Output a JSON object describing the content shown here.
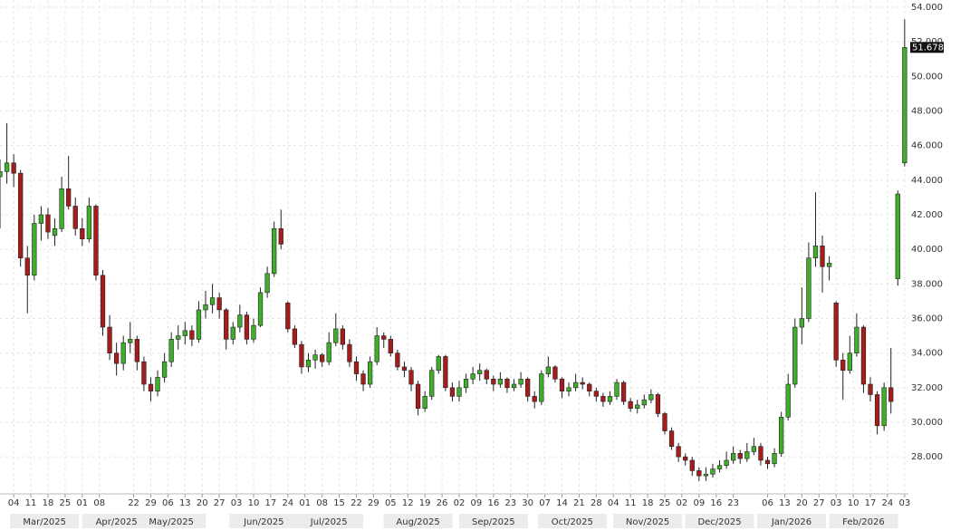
{
  "chart_data": {
    "type": "candlestick",
    "up_color": "#3fae2a",
    "down_color": "#a51c1c",
    "grid": true,
    "xlim": [
      -4,
      261.1
    ],
    "ylim": [
      25.86,
      54.42
    ],
    "yticks": [
      {
        "value": 28,
        "label": "28.000"
      },
      {
        "value": 30,
        "label": "30.000"
      },
      {
        "value": 32,
        "label": "32.000"
      },
      {
        "value": 34,
        "label": "34.000"
      },
      {
        "value": 36,
        "label": "36.000"
      },
      {
        "value": 38,
        "label": "38.000"
      },
      {
        "value": 40,
        "label": "40.000"
      },
      {
        "value": 42,
        "label": "42.000"
      },
      {
        "value": 44,
        "label": "44.000"
      },
      {
        "value": 46,
        "label": "46.000"
      },
      {
        "value": 48,
        "label": "48.000"
      },
      {
        "value": 50,
        "label": "50.000"
      },
      {
        "value": 52,
        "label": "52.000"
      },
      {
        "value": 54,
        "label": "54.000"
      }
    ],
    "xticks": [
      {
        "value": 0,
        "label": "04"
      },
      {
        "value": 5,
        "label": "11"
      },
      {
        "value": 10,
        "label": "18"
      },
      {
        "value": 15,
        "label": "25"
      },
      {
        "value": 20,
        "label": "01"
      },
      {
        "value": 25,
        "label": "08"
      },
      {
        "value": 35,
        "label": "22"
      },
      {
        "value": 40,
        "label": "29"
      },
      {
        "value": 45,
        "label": "06"
      },
      {
        "value": 50,
        "label": "13"
      },
      {
        "value": 55,
        "label": "20"
      },
      {
        "value": 60,
        "label": "27"
      },
      {
        "value": 65,
        "label": "03"
      },
      {
        "value": 70,
        "label": "10"
      },
      {
        "value": 75,
        "label": "17"
      },
      {
        "value": 80,
        "label": "24"
      },
      {
        "value": 85,
        "label": "01"
      },
      {
        "value": 90,
        "label": "08"
      },
      {
        "value": 95,
        "label": "15"
      },
      {
        "value": 100,
        "label": "22"
      },
      {
        "value": 105,
        "label": "29"
      },
      {
        "value": 110,
        "label": "05"
      },
      {
        "value": 115,
        "label": "12"
      },
      {
        "value": 120,
        "label": "19"
      },
      {
        "value": 125,
        "label": "26"
      },
      {
        "value": 130,
        "label": "02"
      },
      {
        "value": 135,
        "label": "09"
      },
      {
        "value": 140,
        "label": "16"
      },
      {
        "value": 145,
        "label": "23"
      },
      {
        "value": 150,
        "label": "30"
      },
      {
        "value": 155,
        "label": "07"
      },
      {
        "value": 160,
        "label": "14"
      },
      {
        "value": 165,
        "label": "21"
      },
      {
        "value": 170,
        "label": "28"
      },
      {
        "value": 175,
        "label": "04"
      },
      {
        "value": 180,
        "label": "11"
      },
      {
        "value": 185,
        "label": "18"
      },
      {
        "value": 190,
        "label": "25"
      },
      {
        "value": 195,
        "label": "02"
      },
      {
        "value": 200,
        "label": "09"
      },
      {
        "value": 205,
        "label": "16"
      },
      {
        "value": 210,
        "label": "23"
      },
      {
        "value": 220,
        "label": "06"
      },
      {
        "value": 225,
        "label": "13"
      },
      {
        "value": 230,
        "label": "20"
      },
      {
        "value": 235,
        "label": "27"
      },
      {
        "value": 240,
        "label": "03"
      },
      {
        "value": 245,
        "label": "10"
      },
      {
        "value": 250,
        "label": "17"
      },
      {
        "value": 255,
        "label": "24"
      },
      {
        "value": 260,
        "label": "03"
      }
    ],
    "month_ticks": [
      {
        "value": 9,
        "label": "Mar/2025"
      },
      {
        "value": 30,
        "label": "Apr/2025"
      },
      {
        "value": 46,
        "label": "May/2025"
      },
      {
        "value": 73,
        "label": "Jun/2025"
      },
      {
        "value": 92,
        "label": "Jul/2025"
      },
      {
        "value": 118,
        "label": "Aug/2025"
      },
      {
        "value": 140,
        "label": "Sep/2025"
      },
      {
        "value": 163,
        "label": "Oct/2025"
      },
      {
        "value": 185,
        "label": "Nov/2025"
      },
      {
        "value": 206,
        "label": "Dec/2025"
      },
      {
        "value": 227,
        "label": "Jan/2026"
      },
      {
        "value": 248,
        "label": "Feb/2026"
      }
    ],
    "x": [
      -4,
      -2,
      0,
      2,
      4,
      6,
      8,
      10,
      12,
      14,
      16,
      18,
      20,
      22,
      24,
      26,
      28,
      30,
      32,
      34,
      36,
      38,
      40,
      42,
      44,
      46,
      48,
      50,
      52,
      54,
      56,
      58,
      60,
      62,
      64,
      66,
      68,
      70,
      72,
      74,
      76,
      78,
      80,
      82,
      84,
      86,
      88,
      90,
      92,
      94,
      96,
      98,
      100,
      102,
      104,
      106,
      108,
      110,
      112,
      114,
      116,
      118,
      120,
      122,
      124,
      126,
      128,
      130,
      132,
      134,
      136,
      138,
      140,
      142,
      144,
      146,
      148,
      150,
      152,
      154,
      156,
      158,
      160,
      162,
      164,
      166,
      168,
      170,
      172,
      174,
      176,
      178,
      180,
      182,
      184,
      186,
      188,
      190,
      192,
      194,
      196,
      198,
      200,
      202,
      204,
      206,
      208,
      210,
      212,
      214,
      216,
      218,
      220,
      222,
      224,
      226,
      228,
      230,
      232,
      234,
      236,
      238,
      240,
      242,
      244,
      246,
      248,
      250,
      252,
      254,
      256,
      258,
      260
    ],
    "ohlc": [
      [
        44.2,
        45.2,
        41.2,
        44.5
      ],
      [
        44.5,
        47.3,
        43.8,
        45.0
      ],
      [
        45.0,
        45.5,
        43.6,
        44.4
      ],
      [
        44.4,
        44.6,
        39.0,
        39.5
      ],
      [
        39.5,
        40.2,
        36.3,
        38.5
      ],
      [
        38.5,
        42.0,
        38.2,
        41.5
      ],
      [
        41.5,
        42.5,
        40.5,
        42.0
      ],
      [
        42.0,
        42.4,
        40.6,
        41.0
      ],
      [
        40.8,
        41.8,
        40.2,
        41.2
      ],
      [
        41.2,
        44.2,
        41.0,
        43.5
      ],
      [
        43.5,
        45.4,
        42.3,
        42.5
      ],
      [
        42.5,
        43.0,
        40.8,
        41.2
      ],
      [
        41.2,
        41.8,
        40.2,
        40.6
      ],
      [
        40.6,
        43.0,
        40.4,
        42.5
      ],
      [
        42.5,
        42.6,
        38.2,
        38.5
      ],
      [
        38.5,
        38.8,
        35.0,
        35.5
      ],
      [
        35.5,
        36.2,
        33.6,
        34.0
      ],
      [
        34.0,
        34.6,
        32.7,
        33.4
      ],
      [
        33.4,
        35.0,
        33.0,
        34.6
      ],
      [
        34.6,
        35.8,
        34.0,
        34.8
      ],
      [
        34.8,
        35.0,
        33.0,
        33.5
      ],
      [
        33.5,
        33.8,
        31.8,
        32.2
      ],
      [
        32.2,
        32.6,
        31.2,
        31.8
      ],
      [
        31.8,
        33.0,
        31.5,
        32.6
      ],
      [
        32.6,
        34.0,
        32.3,
        33.5
      ],
      [
        33.5,
        35.2,
        33.2,
        34.8
      ],
      [
        34.8,
        35.6,
        34.2,
        35.0
      ],
      [
        35.0,
        35.8,
        34.5,
        35.3
      ],
      [
        35.3,
        35.6,
        34.4,
        34.8
      ],
      [
        34.8,
        37.0,
        34.6,
        36.5
      ],
      [
        36.5,
        37.6,
        36.0,
        36.8
      ],
      [
        36.8,
        38.0,
        36.3,
        37.2
      ],
      [
        37.2,
        37.5,
        36.0,
        36.5
      ],
      [
        36.5,
        36.6,
        34.2,
        34.8
      ],
      [
        34.8,
        35.8,
        34.5,
        35.5
      ],
      [
        35.5,
        36.8,
        35.2,
        36.2
      ],
      [
        36.2,
        36.4,
        34.5,
        34.8
      ],
      [
        34.8,
        36.0,
        34.6,
        35.6
      ],
      [
        35.6,
        37.8,
        35.5,
        37.5
      ],
      [
        37.5,
        39.0,
        37.2,
        38.6
      ],
      [
        38.6,
        41.6,
        38.4,
        41.2
      ],
      [
        41.2,
        42.3,
        40.0,
        40.3
      ],
      [
        36.9,
        37.0,
        35.2,
        35.4
      ],
      [
        35.4,
        35.6,
        34.3,
        34.5
      ],
      [
        34.5,
        34.7,
        32.8,
        33.2
      ],
      [
        33.2,
        34.0,
        32.9,
        33.6
      ],
      [
        33.6,
        34.2,
        33.1,
        33.9
      ],
      [
        33.9,
        34.0,
        33.2,
        33.5
      ],
      [
        33.5,
        35.2,
        33.3,
        34.6
      ],
      [
        34.6,
        36.3,
        34.4,
        35.4
      ],
      [
        35.4,
        35.6,
        34.2,
        34.5
      ],
      [
        34.5,
        34.8,
        33.2,
        33.5
      ],
      [
        33.5,
        33.8,
        32.4,
        32.8
      ],
      [
        32.8,
        33.0,
        31.8,
        32.2
      ],
      [
        32.2,
        33.8,
        32.0,
        33.5
      ],
      [
        33.5,
        35.5,
        33.3,
        35.0
      ],
      [
        35.0,
        35.2,
        34.3,
        34.8
      ],
      [
        34.8,
        35.0,
        33.8,
        34.0
      ],
      [
        34.0,
        34.2,
        33.0,
        33.2
      ],
      [
        33.2,
        33.5,
        32.6,
        33.0
      ],
      [
        33.0,
        33.2,
        31.8,
        32.2
      ],
      [
        32.2,
        32.4,
        30.4,
        30.8
      ],
      [
        30.8,
        31.8,
        30.6,
        31.5
      ],
      [
        31.5,
        33.2,
        31.3,
        33.0
      ],
      [
        33.0,
        33.9,
        32.8,
        33.8
      ],
      [
        33.8,
        33.9,
        31.8,
        32.0
      ],
      [
        32.0,
        32.3,
        31.2,
        31.5
      ],
      [
        31.5,
        32.4,
        31.2,
        32.0
      ],
      [
        32.0,
        32.8,
        31.7,
        32.5
      ],
      [
        32.5,
        33.2,
        32.2,
        32.8
      ],
      [
        32.8,
        33.4,
        32.4,
        33.0
      ],
      [
        33.0,
        33.1,
        32.2,
        32.5
      ],
      [
        32.5,
        32.7,
        31.8,
        32.2
      ],
      [
        32.2,
        32.9,
        32.0,
        32.5
      ],
      [
        32.5,
        32.6,
        31.7,
        32.0
      ],
      [
        32.0,
        32.5,
        31.8,
        32.2
      ],
      [
        32.2,
        32.9,
        32.0,
        32.5
      ],
      [
        32.5,
        32.6,
        31.2,
        31.5
      ],
      [
        31.5,
        31.8,
        30.8,
        31.2
      ],
      [
        31.2,
        33.0,
        31.0,
        32.8
      ],
      [
        32.8,
        33.8,
        32.6,
        33.2
      ],
      [
        33.2,
        33.3,
        32.3,
        32.5
      ],
      [
        32.5,
        32.6,
        31.4,
        31.8
      ],
      [
        31.8,
        32.3,
        31.5,
        32.0
      ],
      [
        32.0,
        32.8,
        31.8,
        32.3
      ],
      [
        32.3,
        32.6,
        31.9,
        32.2
      ],
      [
        32.2,
        32.3,
        31.5,
        31.8
      ],
      [
        31.8,
        32.0,
        31.2,
        31.5
      ],
      [
        31.5,
        31.7,
        30.9,
        31.2
      ],
      [
        31.2,
        31.8,
        31.0,
        31.5
      ],
      [
        31.5,
        32.5,
        31.3,
        32.3
      ],
      [
        32.3,
        32.4,
        31.0,
        31.2
      ],
      [
        31.2,
        31.4,
        30.6,
        30.8
      ],
      [
        30.8,
        31.3,
        30.5,
        31.0
      ],
      [
        31.0,
        31.6,
        30.8,
        31.3
      ],
      [
        31.3,
        31.9,
        31.1,
        31.6
      ],
      [
        31.6,
        31.7,
        30.3,
        30.5
      ],
      [
        30.5,
        30.6,
        29.3,
        29.5
      ],
      [
        29.5,
        29.7,
        28.4,
        28.6
      ],
      [
        28.6,
        28.8,
        27.7,
        28.0
      ],
      [
        28.0,
        28.2,
        27.5,
        27.8
      ],
      [
        27.8,
        28.0,
        26.9,
        27.2
      ],
      [
        27.2,
        27.4,
        26.6,
        26.9
      ],
      [
        26.9,
        27.4,
        26.6,
        27.0
      ],
      [
        27.0,
        27.6,
        26.8,
        27.3
      ],
      [
        27.3,
        27.8,
        27.1,
        27.5
      ],
      [
        27.5,
        28.3,
        27.3,
        27.8
      ],
      [
        27.8,
        28.6,
        27.6,
        28.2
      ],
      [
        28.2,
        28.4,
        27.6,
        27.9
      ],
      [
        27.9,
        28.8,
        27.7,
        28.3
      ],
      [
        28.3,
        29.1,
        28.1,
        28.6
      ],
      [
        28.6,
        28.8,
        27.5,
        27.8
      ],
      [
        27.8,
        28.0,
        27.3,
        27.6
      ],
      [
        27.6,
        28.5,
        27.4,
        28.2
      ],
      [
        28.2,
        30.6,
        28.0,
        30.3
      ],
      [
        30.3,
        32.8,
        30.1,
        32.2
      ],
      [
        32.2,
        36.0,
        32.0,
        35.5
      ],
      [
        35.5,
        37.8,
        34.5,
        36.0
      ],
      [
        36.0,
        40.4,
        35.8,
        39.5
      ],
      [
        39.5,
        43.3,
        39.0,
        40.2
      ],
      [
        40.2,
        40.8,
        37.5,
        39.0
      ],
      [
        39.0,
        39.6,
        38.2,
        39.2
      ],
      [
        36.9,
        37.0,
        33.2,
        33.6
      ],
      [
        33.6,
        34.0,
        31.3,
        33.0
      ],
      [
        33.0,
        35.0,
        32.8,
        34.0
      ],
      [
        34.0,
        36.3,
        33.8,
        35.5
      ],
      [
        35.5,
        35.6,
        31.7,
        32.2
      ],
      [
        32.2,
        32.6,
        31.2,
        31.6
      ],
      [
        31.6,
        31.8,
        29.3,
        29.8
      ],
      [
        29.8,
        32.3,
        29.5,
        32.0
      ],
      [
        32.0,
        34.3,
        30.5,
        31.2
      ],
      [
        38.3,
        43.4,
        37.9,
        43.2
      ],
      [
        45.0,
        53.3,
        44.8,
        51.678
      ]
    ]
  }
}
